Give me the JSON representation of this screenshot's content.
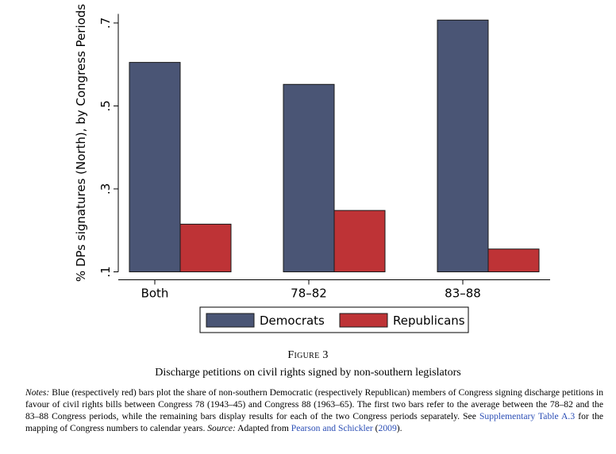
{
  "chart_data": {
    "type": "bar",
    "categories": [
      "Both",
      "78–82",
      "83–88"
    ],
    "series": [
      {
        "name": "Democrats",
        "values": [
          0.605,
          0.552,
          0.707
        ],
        "color": "#4a5575"
      },
      {
        "name": "Republicans",
        "values": [
          0.215,
          0.248,
          0.155
        ],
        "color": "#be3336"
      }
    ],
    "ylabel": "% DPs signatures (North), by Congress Periods",
    "yticks": [
      0.1,
      0.3,
      0.5,
      0.7
    ],
    "ytick_labels": [
      ".1",
      ".3",
      ".5",
      ".7"
    ],
    "ylim": [
      0.1,
      0.72
    ],
    "grid": false,
    "legend_position": "bottom"
  },
  "figure": {
    "label": "Figure 3",
    "caption": "Discharge petitions on civil rights signed by non-southern legislators",
    "notes_label": "Notes:",
    "notes_text_1": " Blue (respectively red) bars plot the share of non-southern Democratic (respectively Republican) members of Congress signing discharge petitions in favour of civil rights bills between Congress 78 (1943–45) and Congress 88 (1963–65). The first two bars refer to the average between the 78–82 and the 83–88 Congress periods, while the remaining bars display results for each of the two Congress periods separately. See ",
    "notes_link_1": "Supplementary Table A.3",
    "notes_text_2": " for the mapping of Congress numbers to calendar years. ",
    "source_label": "Source:",
    "notes_text_3": " Adapted from ",
    "notes_link_2": "Pearson and Schickler",
    "notes_text_4": " (",
    "notes_link_3": "2009",
    "notes_text_5": ")."
  }
}
